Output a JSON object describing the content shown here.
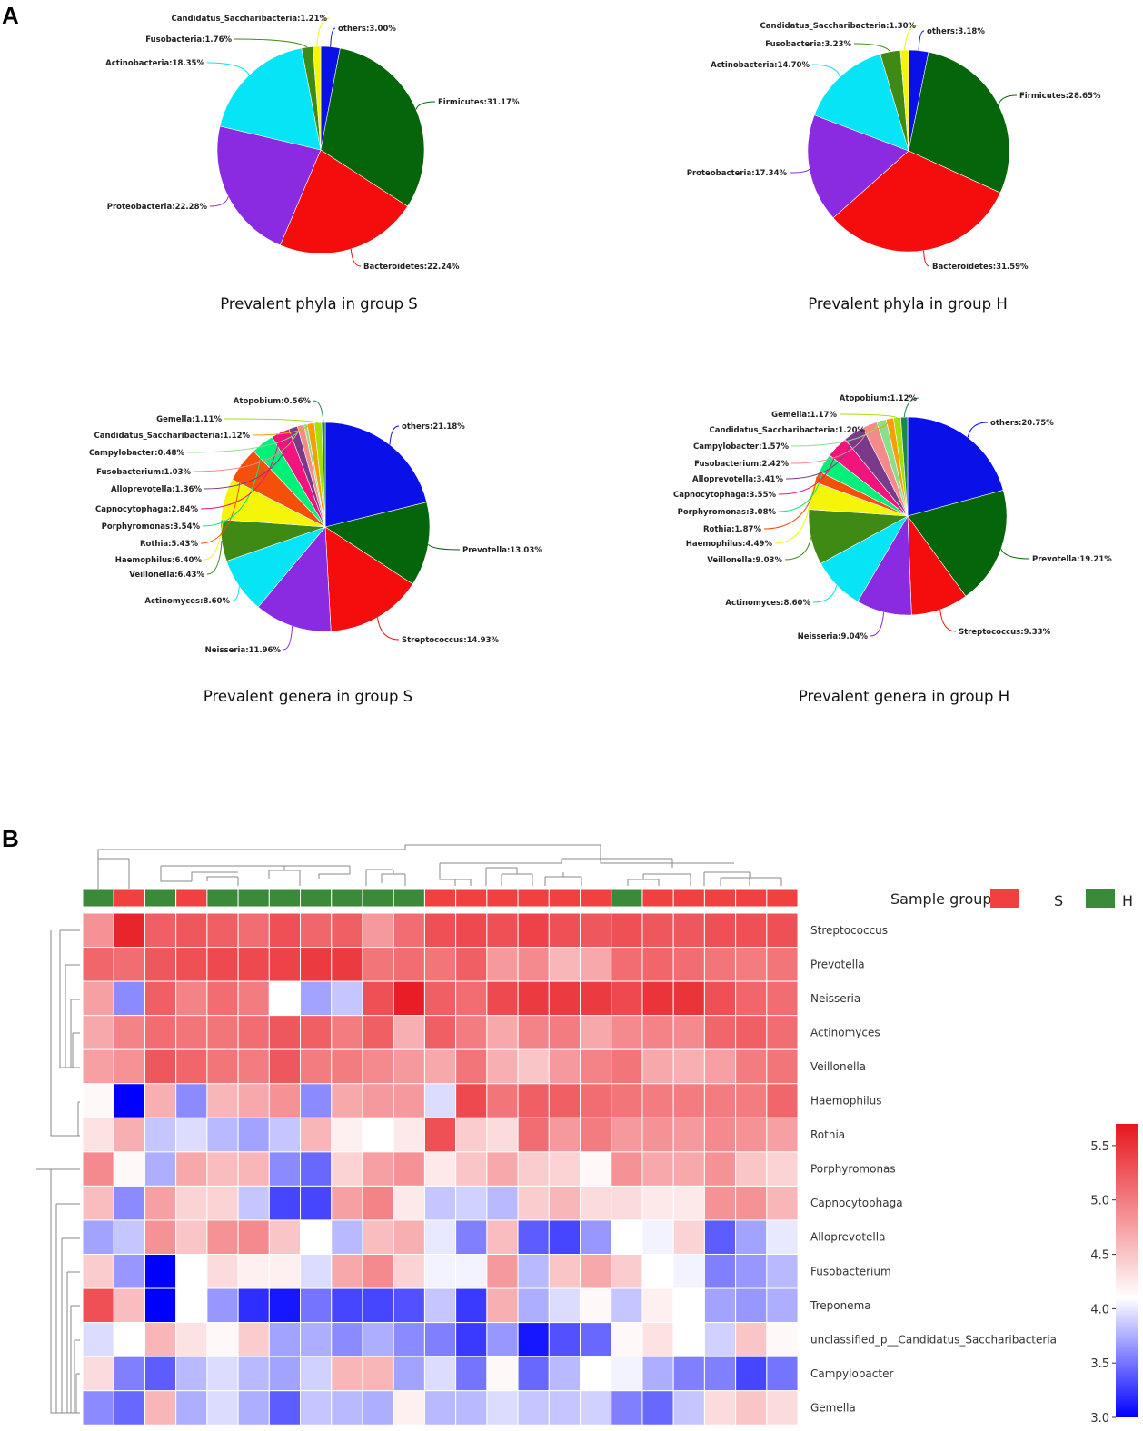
{
  "panel_labels": {
    "a": "A",
    "b": "B"
  },
  "chart_data": [
    {
      "type": "pie",
      "title": "Prevalent phyla in group S",
      "slices": [
        {
          "label": "others",
          "value": 3.0,
          "text": "others:3.00%",
          "color": "#0a10e8"
        },
        {
          "label": "Firmicutes",
          "value": 31.17,
          "text": "Firmicutes:31.17%",
          "color": "#05650a"
        },
        {
          "label": "Bacteroidetes",
          "value": 22.24,
          "text": "Bacteroidetes:22.24%",
          "color": "#f50c0c"
        },
        {
          "label": "Proteobacteria",
          "value": 22.28,
          "text": "Proteobacteria:22.28%",
          "color": "#8a2be2"
        },
        {
          "label": "Actinobacteria",
          "value": 18.35,
          "text": "Actinobacteria:18.35%",
          "color": "#05e5f5"
        },
        {
          "label": "Fusobacteria",
          "value": 1.76,
          "text": "Fusobacteria:1.76%",
          "color": "#3f8a14"
        },
        {
          "label": "Candidatus_Saccharibacteria",
          "value": 1.21,
          "text": "Candidatus_Saccharibacteria:1.21%",
          "color": "#f5f50a"
        }
      ]
    },
    {
      "type": "pie",
      "title": "Prevalent phyla in group H",
      "slices": [
        {
          "label": "others",
          "value": 3.18,
          "text": "others:3.18%",
          "color": "#0a10e8"
        },
        {
          "label": "Firmicutes",
          "value": 28.65,
          "text": "Firmicutes:28.65%",
          "color": "#05650a"
        },
        {
          "label": "Bacteroidetes",
          "value": 31.59,
          "text": "Bacteroidetes:31.59%",
          "color": "#f50c0c"
        },
        {
          "label": "Proteobacteria",
          "value": 17.34,
          "text": "Proteobacteria:17.34%",
          "color": "#8a2be2"
        },
        {
          "label": "Actinobacteria",
          "value": 14.7,
          "text": "Actinobacteria:14.70%",
          "color": "#05e5f5"
        },
        {
          "label": "Fusobacteria",
          "value": 3.23,
          "text": "Fusobacteria:3.23%",
          "color": "#3f8a14"
        },
        {
          "label": "Candidatus_Saccharibacteria",
          "value": 1.3,
          "text": "Candidatus_Saccharibacteria:1.30%",
          "color": "#f5f50a"
        }
      ]
    },
    {
      "type": "pie",
      "title": "Prevalent genera in group S",
      "slices": [
        {
          "label": "others",
          "value": 21.18,
          "text": "others:21.18%",
          "color": "#0a10e8"
        },
        {
          "label": "Prevotella",
          "value": 13.03,
          "text": "Prevotella:13.03%",
          "color": "#05650a"
        },
        {
          "label": "Streptococcus",
          "value": 14.93,
          "text": "Streptococcus:14.93%",
          "color": "#f50c0c"
        },
        {
          "label": "Neisseria",
          "value": 11.96,
          "text": "Neisseria:11.96%",
          "color": "#8a2be2"
        },
        {
          "label": "Actinomyces",
          "value": 8.6,
          "text": "Actinomyces:8.60%",
          "color": "#05e5f5"
        },
        {
          "label": "Veillonella",
          "value": 6.43,
          "text": "Veillonella:6.43%",
          "color": "#3f8a14"
        },
        {
          "label": "Haemophilus",
          "value": 6.4,
          "text": "Haemophilus:6.40%",
          "color": "#f5f50a"
        },
        {
          "label": "Rothia",
          "value": 5.43,
          "text": "Rothia:5.43%",
          "color": "#f5500a"
        },
        {
          "label": "Porphyromonas",
          "value": 3.54,
          "text": "Porphyromonas:3.54%",
          "color": "#00f07a"
        },
        {
          "label": "Capnocytophaga",
          "value": 2.84,
          "text": "Capnocytophaga:2.84%",
          "color": "#f0147c"
        },
        {
          "label": "Alloprevotella",
          "value": 1.36,
          "text": "Alloprevotella:1.36%",
          "color": "#7a3a8a"
        },
        {
          "label": "Fusobacterium",
          "value": 1.03,
          "text": "Fusobacterium:1.03%",
          "color": "#f58a8a"
        },
        {
          "label": "Campylobacter",
          "value": 0.48,
          "text": "Campylobacter:0.48%",
          "color": "#8ae08a"
        },
        {
          "label": "Candidatus_Saccharibacteria",
          "value": 1.12,
          "text": "Candidatus_Saccharibacteria:1.12%",
          "color": "#f5a00a"
        },
        {
          "label": "Gemella",
          "value": 1.11,
          "text": "Gemella:1.11%",
          "color": "#a5e00a"
        },
        {
          "label": "Atopobium",
          "value": 0.56,
          "text": "Atopobium:0.56%",
          "color": "#1a8a4a"
        }
      ]
    },
    {
      "type": "pie",
      "title": "Prevalent genera in group H",
      "slices": [
        {
          "label": "others",
          "value": 20.75,
          "text": "others:20.75%",
          "color": "#0a10e8"
        },
        {
          "label": "Prevotella",
          "value": 19.21,
          "text": "Prevotella:19.21%",
          "color": "#05650a"
        },
        {
          "label": "Streptococcus",
          "value": 9.33,
          "text": "Streptococcus:9.33%",
          "color": "#f50c0c"
        },
        {
          "label": "Neisseria",
          "value": 9.04,
          "text": "Neisseria:9.04%",
          "color": "#8a2be2"
        },
        {
          "label": "Actinomyces",
          "value": 8.6,
          "text": "Actinomyces:8.60%",
          "color": "#05e5f5"
        },
        {
          "label": "Veillonella",
          "value": 9.03,
          "text": "Veillonella:9.03%",
          "color": "#3f8a14"
        },
        {
          "label": "Haemophilus",
          "value": 4.49,
          "text": "Haemophilus:4.49%",
          "color": "#f5f50a"
        },
        {
          "label": "Rothia",
          "value": 1.87,
          "text": "Rothia:1.87%",
          "color": "#f5500a"
        },
        {
          "label": "Porphyromonas",
          "value": 3.08,
          "text": "Porphyromonas:3.08%",
          "color": "#00f07a"
        },
        {
          "label": "Capnocytophaga",
          "value": 3.55,
          "text": "Capnocytophaga:3.55%",
          "color": "#f0147c"
        },
        {
          "label": "Alloprevotella",
          "value": 3.41,
          "text": "Alloprevotella:3.41%",
          "color": "#7a3a8a"
        },
        {
          "label": "Fusobacterium",
          "value": 2.42,
          "text": "Fusobacterium:2.42%",
          "color": "#f58a8a"
        },
        {
          "label": "Campylobacter",
          "value": 1.57,
          "text": "Campylobacter:1.57%",
          "color": "#8ae08a"
        },
        {
          "label": "Candidatus_Saccharibacteria",
          "value": 1.2,
          "text": "Candidatus_Saccharibacteria:1.20%",
          "color": "#f5a00a"
        },
        {
          "label": "Gemella",
          "value": 1.17,
          "text": "Gemella:1.17%",
          "color": "#a5e00a"
        },
        {
          "label": "Atopobium",
          "value": 1.12,
          "text": "Atopobium:1.12%",
          "color": "#1a8a4a"
        }
      ]
    },
    {
      "type": "heatmap",
      "legend_title": "Sample group",
      "groups": [
        {
          "name": "S",
          "color": "#f04040"
        },
        {
          "name": "H",
          "color": "#3a8a3a"
        }
      ],
      "column_groups": [
        "H",
        "S",
        "H",
        "S",
        "H",
        "H",
        "H",
        "H",
        "H",
        "H",
        "H",
        "S",
        "S",
        "S",
        "S",
        "S",
        "S",
        "H",
        "S",
        "S",
        "S",
        "S",
        "S"
      ],
      "rows": [
        "Streptococcus",
        "Prevotella",
        "Neisseria",
        "Actinomyces",
        "Veillonella",
        "Haemophilus",
        "Rothia",
        "Porphyromonas",
        "Capnocytophaga",
        "Alloprevotella",
        "Fusobacterium",
        "Treponema",
        "unclassified_p__Candidatus_Saccharibacteria",
        "Campylobacter",
        "Gemella"
      ],
      "values": [
        [
          4.85,
          5.6,
          5.2,
          5.25,
          5.2,
          5.1,
          5.3,
          5.15,
          5.2,
          4.8,
          5.1,
          5.3,
          5.35,
          5.3,
          5.4,
          5.3,
          5.25,
          5.3,
          5.25,
          5.25,
          5.3,
          5.3,
          5.3
        ],
        [
          5.15,
          5.1,
          5.25,
          5.3,
          5.35,
          5.35,
          5.4,
          5.45,
          5.45,
          5.05,
          5.1,
          5.05,
          5.2,
          4.8,
          4.9,
          4.6,
          4.7,
          5.1,
          5.15,
          5.1,
          5.05,
          5.0,
          5.05
        ],
        [
          4.75,
          3.6,
          5.2,
          4.95,
          5.1,
          5.0,
          4.1,
          3.7,
          3.85,
          5.3,
          5.65,
          5.2,
          5.1,
          5.35,
          5.45,
          5.45,
          5.45,
          5.35,
          5.5,
          5.5,
          5.3,
          5.15,
          5.1
        ],
        [
          4.7,
          4.95,
          5.1,
          5.05,
          5.05,
          5.1,
          5.25,
          5.2,
          5.0,
          5.2,
          4.65,
          5.2,
          5.0,
          4.7,
          4.95,
          5.0,
          4.7,
          4.9,
          4.95,
          4.9,
          5.15,
          5.2,
          5.1
        ],
        [
          4.75,
          4.85,
          5.25,
          5.15,
          5.05,
          5.0,
          5.25,
          5.0,
          5.0,
          4.9,
          4.8,
          4.7,
          5.05,
          4.65,
          4.5,
          4.8,
          4.95,
          5.05,
          4.7,
          4.65,
          4.75,
          5.0,
          5.05
        ],
        [
          4.15,
          3.0,
          4.65,
          3.6,
          4.6,
          4.7,
          4.85,
          3.6,
          4.7,
          4.8,
          4.8,
          3.95,
          5.35,
          5.05,
          5.2,
          5.2,
          5.1,
          5.05,
          5.0,
          5.0,
          5.0,
          5.0,
          5.15
        ],
        [
          4.3,
          4.65,
          3.85,
          3.95,
          3.8,
          3.7,
          3.85,
          4.6,
          4.2,
          4.1,
          4.25,
          5.3,
          4.45,
          4.35,
          5.1,
          4.8,
          5.0,
          4.8,
          4.85,
          4.8,
          4.9,
          4.85,
          4.75
        ],
        [
          4.9,
          4.15,
          3.75,
          4.7,
          4.55,
          4.6,
          3.6,
          3.45,
          4.4,
          4.75,
          4.85,
          4.25,
          4.5,
          4.7,
          4.45,
          4.4,
          4.15,
          4.85,
          4.7,
          4.7,
          4.85,
          4.5,
          4.4
        ],
        [
          4.55,
          3.6,
          4.75,
          4.4,
          4.4,
          3.85,
          3.3,
          3.3,
          4.75,
          4.95,
          4.25,
          3.85,
          3.9,
          3.8,
          4.45,
          4.6,
          4.35,
          4.35,
          4.25,
          4.25,
          4.85,
          4.85,
          4.6
        ],
        [
          3.7,
          3.85,
          4.85,
          4.5,
          4.85,
          4.9,
          4.5,
          4.1,
          3.8,
          4.55,
          4.65,
          4.0,
          3.55,
          4.55,
          3.4,
          3.3,
          3.65,
          4.1,
          4.05,
          4.4,
          3.4,
          3.7,
          4.0
        ],
        [
          4.45,
          3.65,
          3.0,
          4.1,
          4.35,
          4.2,
          4.2,
          3.95,
          4.7,
          4.9,
          4.4,
          4.05,
          4.05,
          4.8,
          3.8,
          4.5,
          4.7,
          4.45,
          4.1,
          4.05,
          3.55,
          3.65,
          3.8
        ],
        [
          5.3,
          4.55,
          3.0,
          4.1,
          3.65,
          3.2,
          3.1,
          3.5,
          3.3,
          3.3,
          3.35,
          3.85,
          3.25,
          4.65,
          3.75,
          3.95,
          4.15,
          3.85,
          4.2,
          4.1,
          3.7,
          3.65,
          3.75
        ],
        [
          3.95,
          4.1,
          4.6,
          4.3,
          4.15,
          4.45,
          3.7,
          3.75,
          3.6,
          3.75,
          3.6,
          3.55,
          3.25,
          3.65,
          3.1,
          3.35,
          3.45,
          4.15,
          4.3,
          4.1,
          3.9,
          4.5,
          4.15
        ],
        [
          4.35,
          3.55,
          3.4,
          3.8,
          3.95,
          3.8,
          3.7,
          3.9,
          4.6,
          4.6,
          3.7,
          3.95,
          3.5,
          4.15,
          3.45,
          3.8,
          4.1,
          4.05,
          3.75,
          3.55,
          3.55,
          3.3,
          3.5
        ],
        [
          3.6,
          3.45,
          4.6,
          3.75,
          3.95,
          3.75,
          3.4,
          3.85,
          3.8,
          3.75,
          4.2,
          3.8,
          3.8,
          3.95,
          3.85,
          3.85,
          3.9,
          3.55,
          3.45,
          3.85,
          4.35,
          4.5,
          4.35
        ]
      ],
      "colorbar": {
        "range": [
          3.0,
          5.7
        ],
        "ticks": [
          "3.0",
          "3.5",
          "4.0",
          "4.5",
          "5.0",
          "5.5"
        ],
        "low_color": "#0000ff",
        "mid_color": "#ffffff",
        "high_color": "#e8161e"
      }
    }
  ]
}
